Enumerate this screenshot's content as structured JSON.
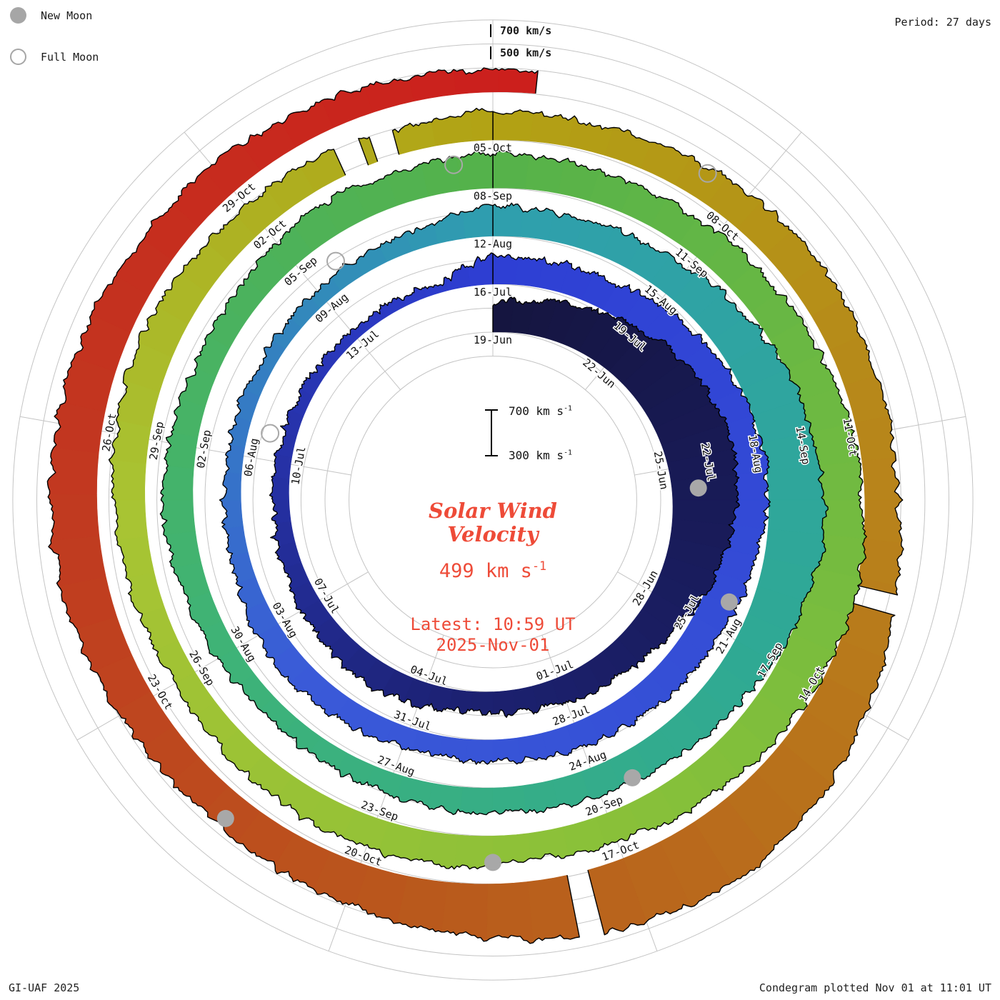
{
  "header": {
    "legend": {
      "new_moon_label": "New Moon",
      "full_moon_label": "Full Moon"
    },
    "period_label": "Period: 27 days",
    "outer_scale_labels": [
      "700 km/s",
      "500 km/s"
    ]
  },
  "center": {
    "scale_top": "700 km s",
    "scale_top_sup": "-1",
    "scale_bottom": "300 km s",
    "scale_bottom_sup": "-1",
    "title_line1": "Solar Wind",
    "title_line2": "Velocity",
    "value": "499 km s",
    "value_sup": "-1",
    "latest_line1": "Latest: 10:59 UT",
    "latest_line2": "2025-Nov-01",
    "accent_color": "#ee4b38"
  },
  "footer": {
    "left": "GI-UAF 2025",
    "right": "Condegram plotted Nov 01 at 11:01 UT"
  },
  "chart_data": {
    "type": "spiral-polar-condegram",
    "title": "Solar Wind Velocity",
    "period_days": 27,
    "start_date": "2025-Jun-19",
    "end_date": "2025-Nov-01 10:59 UT",
    "latest_value_kms": 499,
    "baseline_kms": 300,
    "radial_scale_ref_kms": [
      300,
      700
    ],
    "label_interval_days": 3,
    "date_labels": [
      "19-Jun",
      "22-Jun",
      "25-Jun",
      "28-Jun",
      "01-Jul",
      "04-Jul",
      "07-Jul",
      "10-Jul",
      "13-Jul",
      "16-Jul",
      "19-Jul",
      "22-Jul",
      "25-Jul",
      "28-Jul",
      "31-Jul",
      "03-Aug",
      "06-Aug",
      "09-Aug",
      "12-Aug",
      "15-Aug",
      "18-Aug",
      "21-Aug",
      "24-Aug",
      "27-Aug",
      "30-Aug",
      "02-Sep",
      "05-Sep",
      "08-Sep",
      "11-Sep",
      "14-Sep",
      "17-Sep",
      "20-Sep",
      "23-Sep",
      "26-Sep",
      "29-Sep",
      "02-Oct",
      "05-Oct",
      "08-Oct",
      "11-Oct",
      "14-Oct",
      "17-Oct",
      "20-Oct",
      "23-Oct",
      "26-Oct",
      "29-Oct"
    ],
    "daily_velocity_kms": [
      560,
      610,
      680,
      760,
      830,
      880,
      900,
      860,
      780,
      690,
      610,
      560,
      530,
      500,
      480,
      500,
      530,
      520,
      490,
      465,
      450,
      440,
      420,
      400,
      390,
      385,
      380,
      560,
      540,
      560,
      600,
      660,
      710,
      730,
      700,
      650,
      600,
      570,
      545,
      525,
      505,
      485,
      470,
      500,
      525,
      505,
      475,
      455,
      445,
      435,
      425,
      435,
      455,
      480,
      570,
      545,
      565,
      610,
      670,
      730,
      780,
      800,
      760,
      690,
      620,
      575,
      550,
      530,
      510,
      490,
      470,
      465,
      490,
      530,
      565,
      545,
      505,
      525,
      565,
      605,
      585,
      610,
      585,
      565,
      585,
      610,
      640,
      680,
      720,
      740,
      710,
      660,
      610,
      570,
      545,
      565,
      585,
      565,
      525,
      505,
      525,
      565,
      605,
      625,
      605,
      565,
      545,
      525,
      555,
      535,
      565,
      605,
      625,
      605,
      585,
      605,
      680,
      780,
      880,
      940,
      900,
      820,
      740,
      680,
      640,
      620,
      650,
      690,
      720,
      700,
      670,
      630,
      600,
      560,
      520,
      499
    ],
    "new_moons": [
      {
        "date": "25-Jun",
        "t": 6.5
      },
      {
        "date": "24-Jul",
        "t": 35.5
      },
      {
        "date": "23-Aug",
        "t": 65.5
      },
      {
        "date": "21-Sep",
        "t": 94.5
      },
      {
        "date": "21-Oct",
        "t": 124.5
      }
    ],
    "full_moons": [
      {
        "date": "10-Jul",
        "t": 21.5
      },
      {
        "date": "09-Aug",
        "t": 51.5
      },
      {
        "date": "07-Sep",
        "t": 80.5
      },
      {
        "date": "07-Oct",
        "t": 110.5
      }
    ],
    "gaps_day_index": [
      [
        106.2,
        106.45
      ],
      [
        106.6,
        106.85
      ],
      [
        115.75,
        115.95
      ],
      [
        120.45,
        120.65
      ]
    ],
    "color_stops": [
      [
        0,
        "#15153f"
      ],
      [
        14,
        "#1c2171"
      ],
      [
        27,
        "#2e3fd4"
      ],
      [
        44,
        "#3a5ad8"
      ],
      [
        54,
        "#2f9fae"
      ],
      [
        63,
        "#2fa994"
      ],
      [
        72,
        "#3eb377"
      ],
      [
        81,
        "#55b24a"
      ],
      [
        92,
        "#85c03a"
      ],
      [
        101,
        "#a8c433"
      ],
      [
        108,
        "#b2a214"
      ],
      [
        115,
        "#b8821b"
      ],
      [
        122,
        "#b95a1c"
      ],
      [
        128,
        "#c13a20"
      ],
      [
        136,
        "#cd1c1c"
      ]
    ],
    "grid": "concentric circles + radial lines every 40 degrees",
    "legend_position": "top-left"
  }
}
